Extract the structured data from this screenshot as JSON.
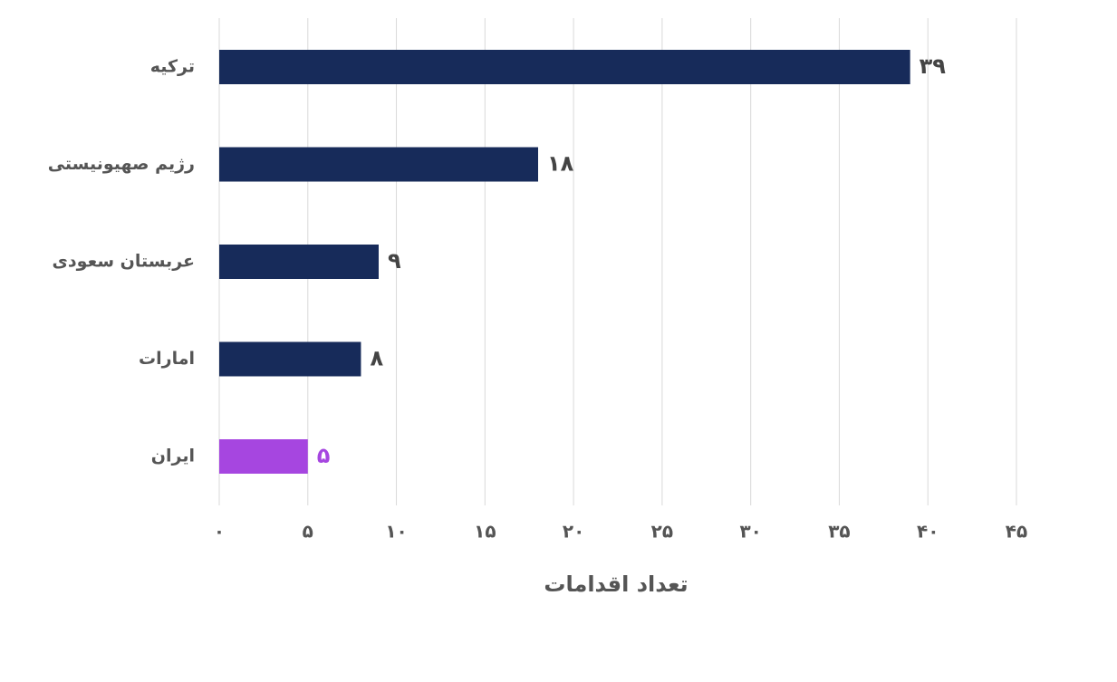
{
  "chart_data": {
    "type": "hbar",
    "x_label": "تعداد اقدامات",
    "categories": [
      "ترکیه",
      "رژیم صهیونیستی",
      "عربستان سعودی",
      "امارات",
      "ایران"
    ],
    "values": [
      39,
      18,
      9,
      8,
      5
    ],
    "value_labels": [
      "۳۹",
      "۱۸",
      "۹",
      "۸",
      "۵"
    ],
    "colors": [
      "#172b5a",
      "#172b5a",
      "#172b5a",
      "#172b5a",
      "#a646e0"
    ],
    "label_colors": [
      "#444444",
      "#444444",
      "#444444",
      "#444444",
      "#a646e0"
    ],
    "xlim": [
      0,
      45
    ],
    "xticks": [
      {
        "value": 0,
        "label": "۰"
      },
      {
        "value": 5,
        "label": "۵"
      },
      {
        "value": 10,
        "label": "۱۰"
      },
      {
        "value": 15,
        "label": "۱۵"
      },
      {
        "value": 20,
        "label": "۲۰"
      },
      {
        "value": 25,
        "label": "۲۵"
      },
      {
        "value": 30,
        "label": "۳۰"
      },
      {
        "value": 35,
        "label": "۳۵"
      },
      {
        "value": 40,
        "label": "۴۰"
      },
      {
        "value": 45,
        "label": "۴۵"
      }
    ],
    "grid": true
  }
}
